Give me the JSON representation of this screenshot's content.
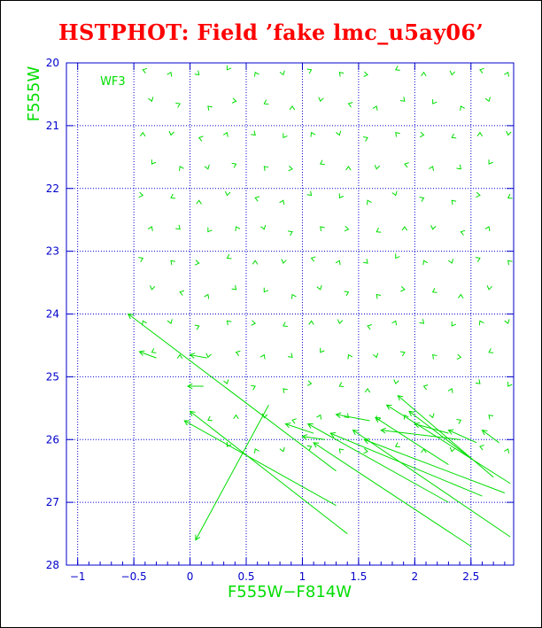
{
  "title": "HSTPHOT: Field ’fake lmc_u5ay06’",
  "chart_data": {
    "type": "scatter",
    "subtype": "vector-field",
    "chip_label": "WF3",
    "xlabel": "F555W−F814W",
    "ylabel": "F555W",
    "xlim": [
      -1.1,
      2.88
    ],
    "ylim": [
      28,
      20
    ],
    "y_inverted": true,
    "grid": true,
    "xticks": [
      -1,
      -0.5,
      0,
      0.5,
      1,
      1.5,
      2,
      2.5
    ],
    "xtick_labels": [
      "−1",
      "−0.5",
      "0",
      "0.5",
      "1",
      "1.5",
      "2",
      "2.5"
    ],
    "yticks": [
      20,
      21,
      22,
      23,
      24,
      25,
      26,
      27,
      28
    ],
    "ytick_labels": [
      "20",
      "21",
      "22",
      "23",
      "24",
      "25",
      "26",
      "27",
      "28"
    ],
    "colors": {
      "title": "#ff0000",
      "axis": "#0000cc",
      "grid": "#0000cc",
      "data": "#00dd00"
    },
    "small_vector_grid": {
      "x_start": -0.4,
      "x_step": 0.25,
      "x_count": 17,
      "y_start": 20.15,
      "y_step": 0.5,
      "y_count": 13
    },
    "long_vectors": [
      {
        "x1": -0.55,
        "y1": 24.0,
        "x2": 1.3,
        "y2": 26.5
      },
      {
        "x1": 0.0,
        "y1": 25.55,
        "x2": 1.4,
        "y2": 27.5
      },
      {
        "x1": -0.05,
        "y1": 25.7,
        "x2": 1.3,
        "y2": 27.05
      },
      {
        "x1": 0.05,
        "y1": 27.6,
        "x2": 0.7,
        "y2": 25.45
      },
      {
        "x1": 1.1,
        "y1": 26.05,
        "x2": 2.5,
        "y2": 27.7
      },
      {
        "x1": 1.05,
        "y1": 25.75,
        "x2": 2.3,
        "y2": 27.0
      },
      {
        "x1": 1.25,
        "y1": 25.9,
        "x2": 2.6,
        "y2": 26.9
      },
      {
        "x1": 1.45,
        "y1": 25.85,
        "x2": 2.85,
        "y2": 27.55
      },
      {
        "x1": 1.55,
        "y1": 26.0,
        "x2": 2.8,
        "y2": 26.85
      },
      {
        "x1": 1.65,
        "y1": 25.65,
        "x2": 2.3,
        "y2": 26.4
      },
      {
        "x1": 1.75,
        "y1": 25.45,
        "x2": 2.85,
        "y2": 26.7
      },
      {
        "x1": 1.85,
        "y1": 25.3,
        "x2": 2.7,
        "y2": 26.6
      },
      {
        "x1": 1.95,
        "y1": 25.55,
        "x2": 2.5,
        "y2": 26.3
      },
      {
        "x1": 1.7,
        "y1": 25.85,
        "x2": 2.4,
        "y2": 26.0
      },
      {
        "x1": 1.3,
        "y1": 25.6,
        "x2": 1.6,
        "y2": 25.7
      },
      {
        "x1": 2.0,
        "y1": 25.75,
        "x2": 2.3,
        "y2": 25.9
      },
      {
        "x1": 2.3,
        "y1": 25.85,
        "x2": 2.55,
        "y2": 26.05
      },
      {
        "x1": 2.6,
        "y1": 25.85,
        "x2": 2.75,
        "y2": 26.05
      },
      {
        "x1": 0.85,
        "y1": 25.75,
        "x2": 1.1,
        "y2": 25.9
      },
      {
        "x1": 1.0,
        "y1": 25.95,
        "x2": 1.2,
        "y2": 26.0
      },
      {
        "x1": 0.0,
        "y1": 24.65,
        "x2": 0.15,
        "y2": 24.7
      },
      {
        "x1": -0.45,
        "y1": 24.6,
        "x2": -0.3,
        "y2": 24.7
      },
      {
        "x1": -0.02,
        "y1": 25.15,
        "x2": 0.12,
        "y2": 25.15
      }
    ]
  }
}
